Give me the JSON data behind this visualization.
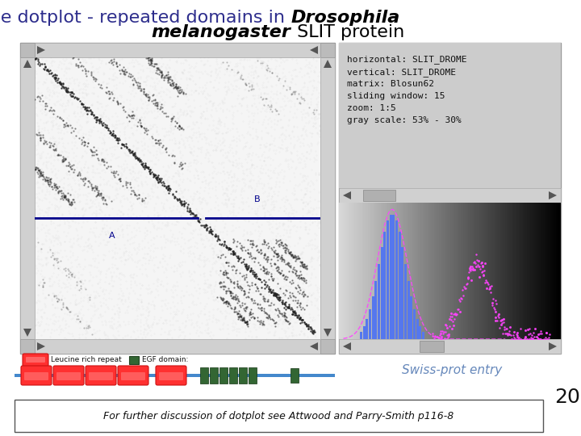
{
  "title_color": "#2d2d8c",
  "title_fontsize": 16,
  "bg_color": "#ffffff",
  "info_text": "horizontal: SLIT_DROME\nvertical: SLIT_DROME\nmatrix: Blosun62\nsliding window: 15\nzoom: 1:5\ngray scale: 53% - 30%",
  "swiss_prot_text": "Swiss-prot entry",
  "swiss_prot_color": "#6688bb",
  "bottom_text": "For further discussion of dotplot see Attwood and Parry-Smith p116-8",
  "legend_text1": "Leucine rich repeat",
  "legend_text2": "EGF domain:",
  "page_number": "20",
  "panel_bg": "#c8c8c8",
  "blue_line_color": "#00008b",
  "lrr_color": "#ff3030",
  "egf_color": "#336633",
  "backbone_color": "#4488cc"
}
